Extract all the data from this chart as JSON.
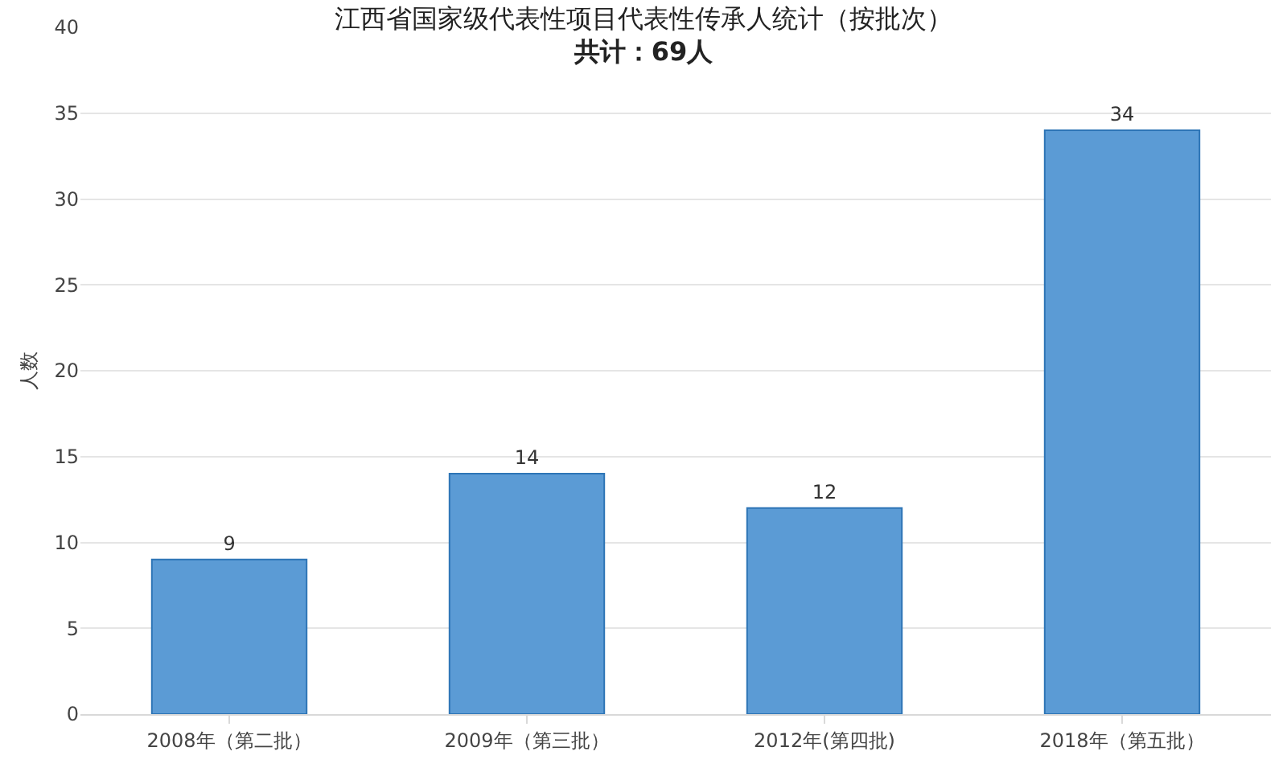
{
  "chart_data": {
    "type": "bar",
    "title": "江西省国家级代表性项目代表性传承人统计（按批次）",
    "subtitle": "共计：69人",
    "ylabel": "人数",
    "categories": [
      "2008年（第二批）",
      "2009年（第三批）",
      "2012年(第四批)",
      "2018年（第五批）"
    ],
    "values": [
      9,
      14,
      12,
      34
    ],
    "color": "#5b9bd5",
    "data_labels": true,
    "ylim": [
      0,
      40
    ],
    "yticks": [
      0,
      5,
      10,
      15,
      20,
      25,
      30,
      35,
      40
    ],
    "grid": "y",
    "legend": false
  }
}
